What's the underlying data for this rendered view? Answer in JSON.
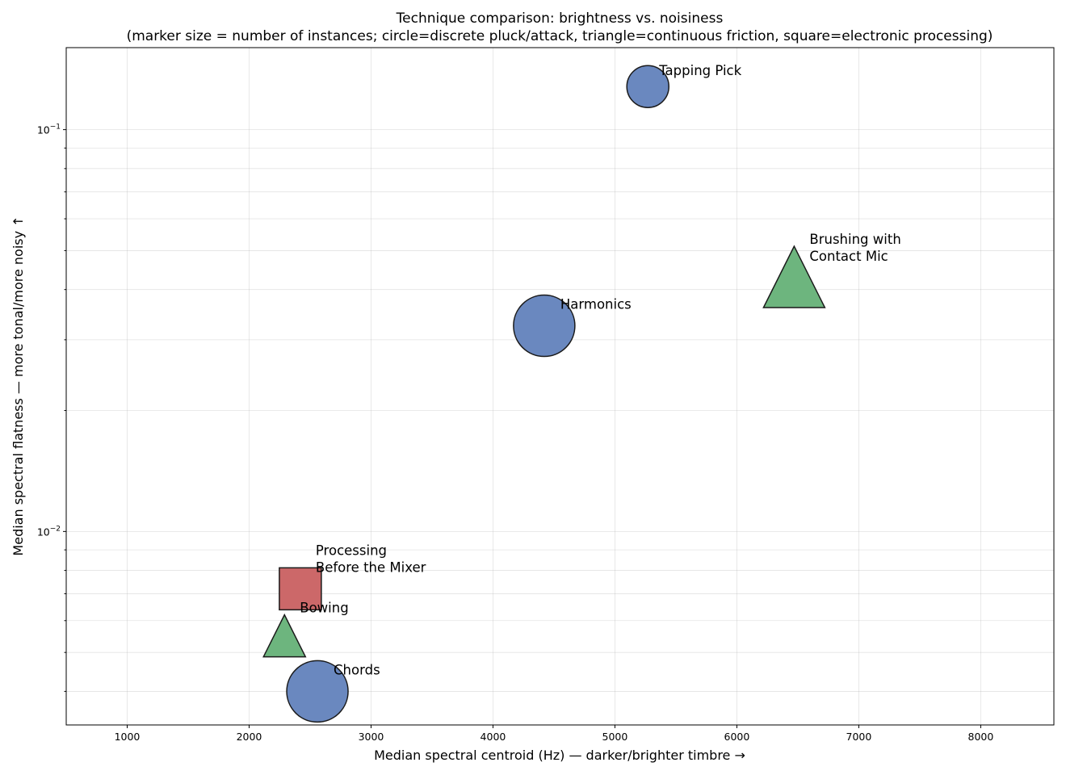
{
  "chart_data": {
    "type": "scatter",
    "title": "Technique comparison: brightness vs. noisiness",
    "subtitle": "(marker size = number of instances; circle=discrete pluck/attack, triangle=continuous friction, square=electronic processing)",
    "xlabel": "Median spectral centroid (Hz) — darker/brighter timbre →",
    "ylabel": "Median spectral flatness — more tonal/more noisy ↑",
    "xlim": [
      500,
      8600
    ],
    "ylim": [
      0.0033,
      0.16
    ],
    "yscale": "log",
    "grid": true,
    "x_ticks": [
      1000,
      2000,
      3000,
      4000,
      5000,
      6000,
      7000,
      8000
    ],
    "x_tick_labels": [
      "1000",
      "2000",
      "3000",
      "4000",
      "5000",
      "6000",
      "7000",
      "8000"
    ],
    "y_major_ticks": [
      0.01,
      0.1
    ],
    "y_tick_labels": [
      {
        "base": "10",
        "exp": "−2"
      },
      {
        "base": "10",
        "exp": "−1"
      }
    ],
    "y_minor_ticks": [
      0.004,
      0.005,
      0.006,
      0.007,
      0.008,
      0.009,
      0.02,
      0.03,
      0.04,
      0.05,
      0.06,
      0.07,
      0.08,
      0.09
    ],
    "colors": {
      "circle": "#6a88bf",
      "triangle": "#6db57e",
      "square": "#cc6869",
      "edge": "#1a1a1a"
    },
    "points": [
      {
        "label": [
          "Tapping Pick"
        ],
        "x": 5270,
        "y": 0.128,
        "shape": "circle",
        "size": 1
      },
      {
        "label": [
          "Brushing with",
          "Contact Mic"
        ],
        "x": 6470,
        "y": 0.043,
        "shape": "triangle",
        "size": 2
      },
      {
        "label": [
          "Harmonics"
        ],
        "x": 4420,
        "y": 0.0325,
        "shape": "circle",
        "size": 2.3
      },
      {
        "label": [
          "Processing",
          "Before the Mixer"
        ],
        "x": 2420,
        "y": 0.0072,
        "shape": "square",
        "size": 1
      },
      {
        "label": [
          "Bowing"
        ],
        "x": 2290,
        "y": 0.0055,
        "shape": "triangle",
        "size": 1
      },
      {
        "label": [
          "Chords"
        ],
        "x": 2560,
        "y": 0.004,
        "shape": "circle",
        "size": 2.3
      }
    ]
  }
}
